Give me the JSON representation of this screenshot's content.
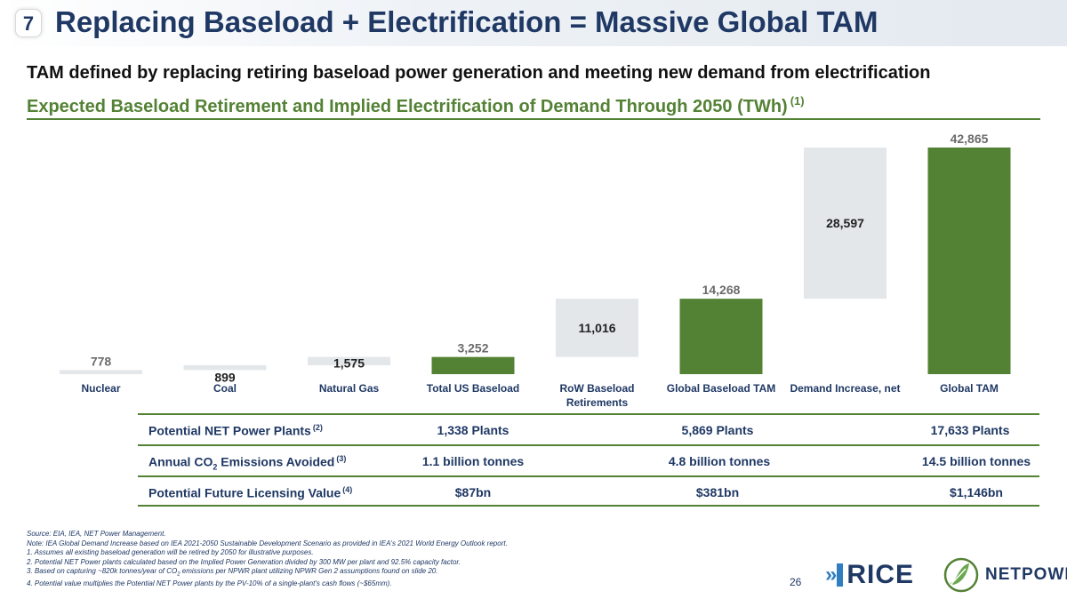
{
  "header": {
    "slide_badge": "7",
    "title": "Replacing Baseload + Electrification = Massive Global TAM"
  },
  "subtitle": "TAM defined by replacing retiring baseload power generation and meeting new demand from electrification",
  "chart_heading": {
    "text": "Expected Baseload Retirement and Implied Electrification of Demand Through 2050 (TWh)",
    "footnote_ref": "(1)"
  },
  "chart_data": {
    "type": "bar",
    "subtype": "waterfall",
    "categories": [
      "Nuclear",
      "Coal",
      "Natural Gas",
      "Total US Baseload",
      "RoW Baseload Retirements",
      "Global Baseload TAM",
      "Demand Increase, net",
      "Global TAM"
    ],
    "bars": [
      {
        "category": "Nuclear",
        "kind": "increment",
        "start": 0,
        "end": 778,
        "value": 778,
        "label": "778"
      },
      {
        "category": "Coal",
        "kind": "increment",
        "start": 778,
        "end": 1677,
        "value": 899,
        "label": "899"
      },
      {
        "category": "Natural Gas",
        "kind": "increment",
        "start": 1677,
        "end": 3252,
        "value": 1575,
        "label": "1,575"
      },
      {
        "category": "Total US Baseload",
        "kind": "total",
        "start": 0,
        "end": 3252,
        "value": 3252,
        "label": "3,252"
      },
      {
        "category": "RoW Baseload Retirements",
        "kind": "increment",
        "start": 3252,
        "end": 14268,
        "value": 11016,
        "label": "11,016"
      },
      {
        "category": "Global Baseload TAM",
        "kind": "total",
        "start": 0,
        "end": 14268,
        "value": 14268,
        "label": "14,268"
      },
      {
        "category": "Demand Increase, net",
        "kind": "increment",
        "start": 14268,
        "end": 42865,
        "value": 28597,
        "label": "28,597"
      },
      {
        "category": "Global TAM",
        "kind": "total",
        "start": 0,
        "end": 42865,
        "value": 42865,
        "label": "42,865"
      }
    ],
    "ylim": [
      0,
      42865
    ],
    "title": "",
    "xlabel": "",
    "ylabel": "",
    "grid": false,
    "legend": "none",
    "colors": {
      "increment": "#e3e7ea",
      "total": "#548235",
      "label_dark": "#1f3864",
      "label_muted": "#6b6b6b"
    }
  },
  "metrics": {
    "rows": [
      {
        "label": "Potential NET Power Plants",
        "label_sub": "",
        "label_after": "",
        "ref": "(2)",
        "values": [
          "1,338 Plants",
          "5,869 Plants",
          "17,633 Plants"
        ]
      },
      {
        "label": "Annual CO",
        "label_sub": "2",
        "label_after": " Emissions Avoided",
        "ref": "(3)",
        "values": [
          "1.1 billion tonnes",
          "4.8 billion tonnes",
          "14.5 billion tonnes"
        ]
      },
      {
        "label": "Potential Future Licensing Value",
        "label_sub": "",
        "label_after": "",
        "ref": "(4)",
        "values": [
          "$87bn",
          "$381bn",
          "$1,146bn"
        ]
      }
    ]
  },
  "footnotes": {
    "source": "Source:  EIA, IEA, NET Power Management.",
    "note": "Note:  IEA Global Demand Increase based on IEA 2021-2050 Sustainable Development Scenario as provided in IEA's 2021 World Energy Outlook report.",
    "items": [
      "1.  Assumes all existing baseload generation will be retired by 2050 for illustrative purposes.",
      "2.  Potential NET Power plants calculated based on the Implied Power Generation divided by 300 MW per plant and 92.5% capacity factor.",
      "3.  Based on capturing ~820k tonnes/year of CO",
      "4.  Potential value multiplies the Potential NET Power plants by the PV-10% of a single-plant's cash flows (~$65mm)."
    ],
    "item3_sub": "2",
    "item3_after": " emissions per NPWR plant utilizing NPWR Gen 2 assumptions found on slide 20."
  },
  "page_number": "26",
  "logos": {
    "rice": {
      "chevrons": "»",
      "text": "RICE",
      "color": "#2f7ec1"
    },
    "netpower": {
      "text": "NETPOWER",
      "color": "#548235"
    }
  }
}
